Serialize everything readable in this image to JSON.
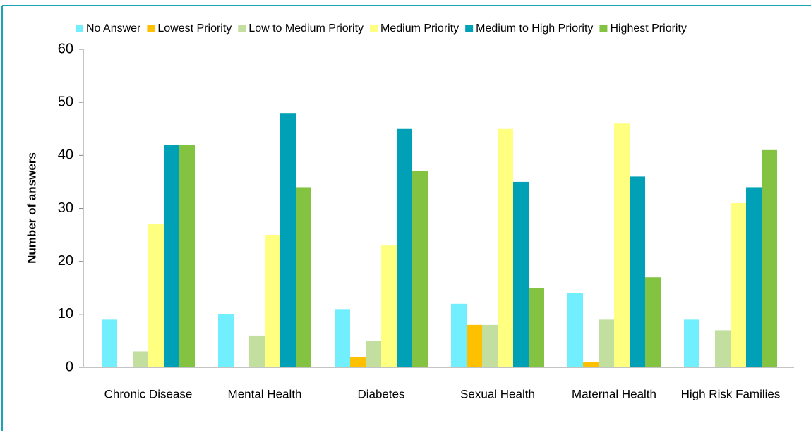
{
  "chart_data": {
    "type": "bar",
    "ylabel": "Number of answers",
    "categories": [
      "Chronic Disease",
      "Mental Health",
      "Diabetes",
      "Sexual Health",
      "Maternal Health",
      "High Risk Families"
    ],
    "series": [
      {
        "name": "No Answer",
        "color": "#72efff",
        "values": [
          9,
          10,
          11,
          12,
          14,
          9
        ]
      },
      {
        "name": "Lowest Priority",
        "color": "#ffc000",
        "values": [
          0,
          0,
          2,
          8,
          1,
          0
        ]
      },
      {
        "name": "Low to Medium Priority",
        "color": "#c3df9f",
        "values": [
          3,
          6,
          5,
          8,
          9,
          7
        ]
      },
      {
        "name": "Medium Priority",
        "color": "#ffff80",
        "values": [
          27,
          25,
          23,
          45,
          46,
          31
        ]
      },
      {
        "name": "Medium to High Priority",
        "color": "#00a1b7",
        "values": [
          42,
          48,
          45,
          35,
          36,
          34
        ]
      },
      {
        "name": "Highest Priority",
        "color": "#83c341",
        "values": [
          42,
          34,
          37,
          15,
          17,
          41
        ]
      }
    ],
    "ylim": [
      0,
      60
    ],
    "yticks": [
      0,
      10,
      20,
      30,
      40,
      50,
      60
    ],
    "grid": false,
    "legend": "top"
  }
}
